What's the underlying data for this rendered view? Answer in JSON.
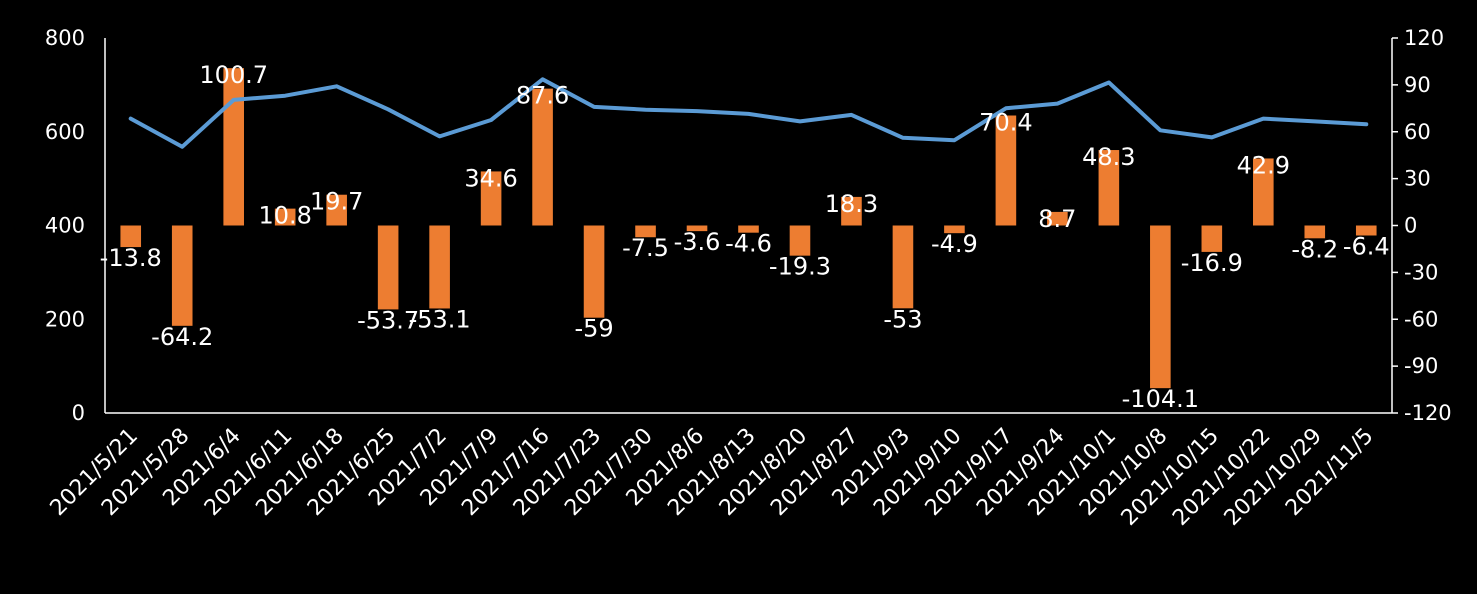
{
  "chart_data": {
    "type": "bar+line",
    "categories": [
      "2021/5/21",
      "2021/5/28",
      "2021/6/4",
      "2021/6/11",
      "2021/6/18",
      "2021/6/25",
      "2021/7/2",
      "2021/7/9",
      "2021/7/16",
      "2021/7/23",
      "2021/7/30",
      "2021/8/6",
      "2021/8/13",
      "2021/8/20",
      "2021/8/27",
      "2021/9/3",
      "2021/9/10",
      "2021/9/17",
      "2021/9/24",
      "2021/10/1",
      "2021/10/8",
      "2021/10/15",
      "2021/10/22",
      "2021/10/29",
      "2021/11/5"
    ],
    "series": [
      {
        "type": "bar",
        "axis": "right",
        "color": "#ED7D31",
        "values": [
          -13.8,
          -64.2,
          100.7,
          10.8,
          19.7,
          -53.7,
          -53.1,
          34.6,
          87.6,
          -59,
          -7.5,
          -3.6,
          -4.6,
          -19.3,
          18.3,
          -53,
          -4.9,
          70.4,
          8.7,
          48.3,
          -104.1,
          -16.9,
          42.9,
          -8.2,
          -6.4
        ],
        "labels": [
          "-13.8",
          "-64.2",
          "100.7",
          "10.8",
          "19.7",
          "-53.7",
          "-53.1",
          "34.6",
          "87.6",
          "-59",
          "-7.5",
          "-3.6",
          "-4.6",
          "-19.3",
          "18.3",
          "-53",
          "-4.9",
          "70.4",
          "8.7",
          "48.3",
          "-104.1",
          "-16.9",
          "42.9",
          "-8.2",
          "-6.4"
        ]
      },
      {
        "type": "line",
        "axis": "left",
        "color": "#5B9BD5",
        "values": [
          628,
          568,
          668,
          677,
          697,
          648,
          590,
          625,
          712,
          653,
          647,
          644,
          638,
          622,
          636,
          587,
          582,
          650,
          660,
          705,
          603,
          588,
          628,
          622,
          616
        ]
      }
    ],
    "y_left": {
      "min": 0,
      "max": 800,
      "ticks": [
        "0",
        "200",
        "400",
        "600",
        "800"
      ]
    },
    "y_right": {
      "min": -120,
      "max": 120,
      "ticks": [
        "-120",
        "-90",
        "-60",
        "-30",
        "0",
        "30",
        "60",
        "90",
        "120"
      ]
    },
    "background": "#000000",
    "text_color": "#FFFFFF",
    "axis_color": "#FFFFFF"
  }
}
